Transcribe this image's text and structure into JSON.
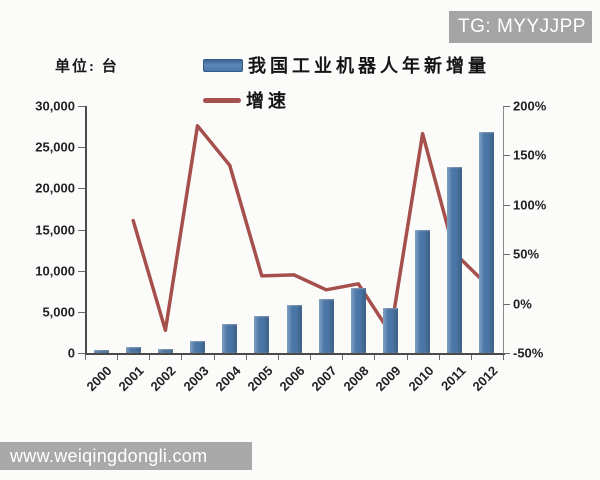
{
  "badge": {
    "text": "TG: MYYJJPP",
    "bg_color": "#a5a5a5"
  },
  "watermark": {
    "text": "www.weiqingdongli.com",
    "bg_color": "#a9a9a9"
  },
  "chart_data": {
    "type": "bar+line",
    "title": "",
    "unit_label": "单位: 台",
    "categories": [
      "2000",
      "2001",
      "2002",
      "2003",
      "2004",
      "2005",
      "2006",
      "2007",
      "2008",
      "2009",
      "2010",
      "2011",
      "2012"
    ],
    "series": [
      {
        "name": "我国工业机器人年新增量",
        "type": "bar",
        "y_axis": "left",
        "color": "#4a77a8",
        "values": [
          380,
          700,
          510,
          1450,
          3500,
          4500,
          5800,
          6600,
          7900,
          5500,
          15000,
          22600,
          26900
        ]
      },
      {
        "name": "增速",
        "type": "line",
        "y_axis": "right",
        "color": "#a6504d",
        "values": [
          null,
          84,
          -27,
          180,
          140,
          28,
          29,
          14,
          20,
          -30,
          172,
          51,
          19
        ]
      }
    ],
    "left_axis": {
      "min": 0,
      "max": 30000,
      "step": 5000,
      "labels": [
        "0",
        "5,000",
        "10,000",
        "15,000",
        "20,000",
        "25,000",
        "30,000"
      ]
    },
    "right_axis": {
      "min": -50,
      "max": 200,
      "step": 50,
      "labels": [
        "-50%",
        "0%",
        "50%",
        "100%",
        "150%",
        "200%"
      ]
    },
    "legend_position": "top",
    "grid": false
  }
}
